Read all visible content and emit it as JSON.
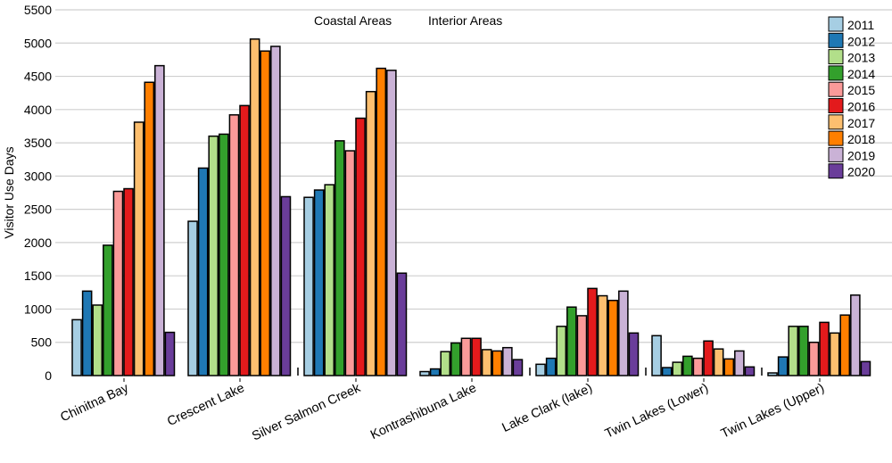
{
  "chart_data": {
    "type": "bar",
    "ylabel": "Visitor Use Days",
    "xlabel": "",
    "ylim": [
      0,
      5500
    ],
    "yticks": [
      0,
      500,
      1000,
      1500,
      2000,
      2500,
      3000,
      3500,
      4000,
      4500,
      5000,
      5500
    ],
    "grid": true,
    "legend_position": "top-right",
    "annotations": [
      "Coastal Areas",
      "Interior Areas"
    ],
    "categories": [
      "Chinitna Bay",
      "Crescent Lake",
      "Silver Salmon Creek",
      "Kontrashibuna Lake",
      "Lake Clark (lake)",
      "Twin Lakes (Lower)",
      "Twin Lakes (Upper)"
    ],
    "series": [
      {
        "name": "2011",
        "color": "#a6cee3",
        "values": [
          840,
          2320,
          2680,
          60,
          170,
          600,
          40
        ]
      },
      {
        "name": "2012",
        "color": "#1f78b4",
        "values": [
          1270,
          3120,
          2790,
          100,
          260,
          120,
          280
        ]
      },
      {
        "name": "2013",
        "color": "#b2df8a",
        "values": [
          1060,
          3600,
          2870,
          360,
          740,
          200,
          740
        ]
      },
      {
        "name": "2014",
        "color": "#33a02c",
        "values": [
          1960,
          3630,
          3530,
          490,
          1030,
          290,
          740
        ]
      },
      {
        "name": "2015",
        "color": "#fb9a99",
        "values": [
          2770,
          3920,
          3380,
          560,
          900,
          260,
          500
        ]
      },
      {
        "name": "2016",
        "color": "#e31a1c",
        "values": [
          2810,
          4060,
          3870,
          560,
          1310,
          520,
          800
        ]
      },
      {
        "name": "2017",
        "color": "#fdbf6f",
        "values": [
          3810,
          5060,
          4270,
          390,
          1200,
          400,
          640
        ]
      },
      {
        "name": "2018",
        "color": "#ff7f00",
        "values": [
          4410,
          4880,
          4620,
          370,
          1130,
          250,
          910
        ]
      },
      {
        "name": "2019",
        "color": "#cab2d6",
        "values": [
          4660,
          4950,
          4590,
          420,
          1270,
          370,
          1210
        ]
      },
      {
        "name": "2020",
        "color": "#6a3d9a",
        "values": [
          650,
          2690,
          1540,
          240,
          640,
          130,
          210
        ]
      }
    ]
  }
}
